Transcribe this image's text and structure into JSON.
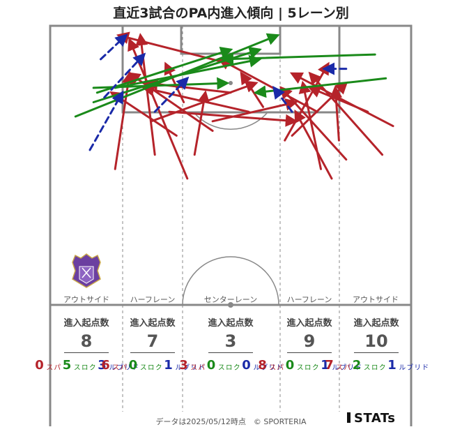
{
  "title": "直近3試合のPA内進入傾向 | 5レーン別",
  "colors": {
    "pass": "#b5232a",
    "cross": "#1a8a1a",
    "dribble": "#1a2aa8"
  },
  "lanes": [
    {
      "label": "アウトサイド",
      "header": "進入起点数",
      "total": "8",
      "pass": "0",
      "cross": "5",
      "dribble": "3"
    },
    {
      "label": "ハーフレーン",
      "header": "進入起点数",
      "total": "7",
      "pass": "6",
      "cross": "0",
      "dribble": "1"
    },
    {
      "label": "センターレーン",
      "header": "進入起点数",
      "total": "3",
      "pass": "3",
      "cross": "0",
      "dribble": "0"
    },
    {
      "label": "ハーフレーン",
      "header": "進入起点数",
      "total": "9",
      "pass": "8",
      "cross": "0",
      "dribble": "1"
    },
    {
      "label": "アウトサイド",
      "header": "進入起点数",
      "total": "10",
      "pass": "7",
      "cross": "2",
      "dribble": "1"
    }
  ],
  "kinds": {
    "pass": "パス",
    "cross": "クロス",
    "dribble": "ドリブル"
  },
  "footer": "データは2025/05/12時点　© SPORTERIA",
  "logo": "STATs",
  "crest_icon": "club-crest-icon",
  "chart_data": {
    "type": "arrow-map",
    "description_units": "pitch coordinates: x 0-100 across the width (left to right), y 0-100 from own goal line (0) to attacking goal line (100)",
    "arrows": [
      {
        "kind": "pass",
        "from": [
          50,
          92
        ],
        "to": [
          19,
          98
        ]
      },
      {
        "kind": "pass",
        "from": [
          18,
          70
        ],
        "to": [
          22,
          90
        ]
      },
      {
        "kind": "pass",
        "from": [
          29,
          73
        ],
        "to": [
          25,
          98
        ]
      },
      {
        "kind": "pass",
        "from": [
          38,
          68
        ],
        "to": [
          22,
          97
        ]
      },
      {
        "kind": "pass",
        "from": [
          28,
          80
        ],
        "to": [
          57,
          88
        ]
      },
      {
        "kind": "pass",
        "from": [
          45,
          78
        ],
        "to": [
          22,
          90
        ]
      },
      {
        "kind": "pass",
        "from": [
          40,
          73
        ],
        "to": [
          43,
          86
        ]
      },
      {
        "kind": "pass",
        "from": [
          59,
          83
        ],
        "to": [
          53,
          90
        ]
      },
      {
        "kind": "pass",
        "from": [
          74,
          82
        ],
        "to": [
          47,
          93
        ]
      },
      {
        "kind": "pass",
        "from": [
          65,
          76
        ],
        "to": [
          77,
          92
        ]
      },
      {
        "kind": "pass",
        "from": [
          67,
          77
        ],
        "to": [
          82,
          88
        ]
      },
      {
        "kind": "pass",
        "from": [
          75,
          70
        ],
        "to": [
          70,
          88
        ]
      },
      {
        "kind": "pass",
        "from": [
          82,
          72
        ],
        "to": [
          64,
          87
        ]
      },
      {
        "kind": "pass",
        "from": [
          88,
          82
        ],
        "to": [
          72,
          87
        ]
      },
      {
        "kind": "pass",
        "from": [
          92,
          73
        ],
        "to": [
          72,
          90
        ]
      },
      {
        "kind": "pass",
        "from": [
          78,
          68
        ],
        "to": [
          68,
          82
        ]
      },
      {
        "kind": "pass",
        "from": [
          95,
          79
        ],
        "to": [
          67,
          90
        ]
      },
      {
        "kind": "pass",
        "from": [
          80,
          76
        ],
        "to": [
          79,
          87
        ]
      },
      {
        "kind": "pass",
        "from": [
          55,
          82
        ],
        "to": [
          26,
          87
        ]
      },
      {
        "kind": "pass",
        "from": [
          33,
          82
        ],
        "to": [
          68,
          80
        ]
      },
      {
        "kind": "pass",
        "from": [
          45,
          80
        ],
        "to": [
          68,
          84
        ]
      },
      {
        "kind": "pass",
        "from": [
          35,
          77
        ],
        "to": [
          17,
          86
        ]
      },
      {
        "kind": "pass",
        "from": [
          37,
          84
        ],
        "to": [
          32,
          92
        ]
      },
      {
        "kind": "pass",
        "from": [
          50,
          86
        ],
        "to": [
          27,
          88
        ]
      },
      {
        "kind": "cross",
        "from": [
          7,
          81
        ],
        "to": [
          63,
          98
        ]
      },
      {
        "kind": "cross",
        "from": [
          12,
          84
        ],
        "to": [
          58,
          95
        ]
      },
      {
        "kind": "cross",
        "from": [
          18,
          87
        ],
        "to": [
          58,
          93
        ]
      },
      {
        "kind": "cross",
        "from": [
          13,
          86
        ],
        "to": [
          50,
          95
        ]
      },
      {
        "kind": "cross",
        "from": [
          12,
          87
        ],
        "to": [
          49,
          88
        ]
      },
      {
        "kind": "cross",
        "from": [
          90,
          94
        ],
        "to": [
          48,
          93
        ]
      },
      {
        "kind": "cross",
        "from": [
          93,
          89
        ],
        "to": [
          57,
          86
        ]
      },
      {
        "kind": "dribble",
        "from": [
          14,
          93
        ],
        "to": [
          21,
          98
        ]
      },
      {
        "kind": "dribble",
        "from": [
          11,
          74
        ],
        "to": [
          20,
          86
        ]
      },
      {
        "kind": "dribble",
        "from": [
          15,
          85
        ],
        "to": [
          26,
          94
        ]
      },
      {
        "kind": "dribble",
        "from": [
          29,
          82
        ],
        "to": [
          38,
          89
        ]
      },
      {
        "kind": "dribble",
        "from": [
          67,
          82
        ],
        "to": [
          62,
          87
        ]
      },
      {
        "kind": "dribble",
        "from": [
          82,
          91
        ],
        "to": [
          76,
          91
        ]
      }
    ]
  }
}
